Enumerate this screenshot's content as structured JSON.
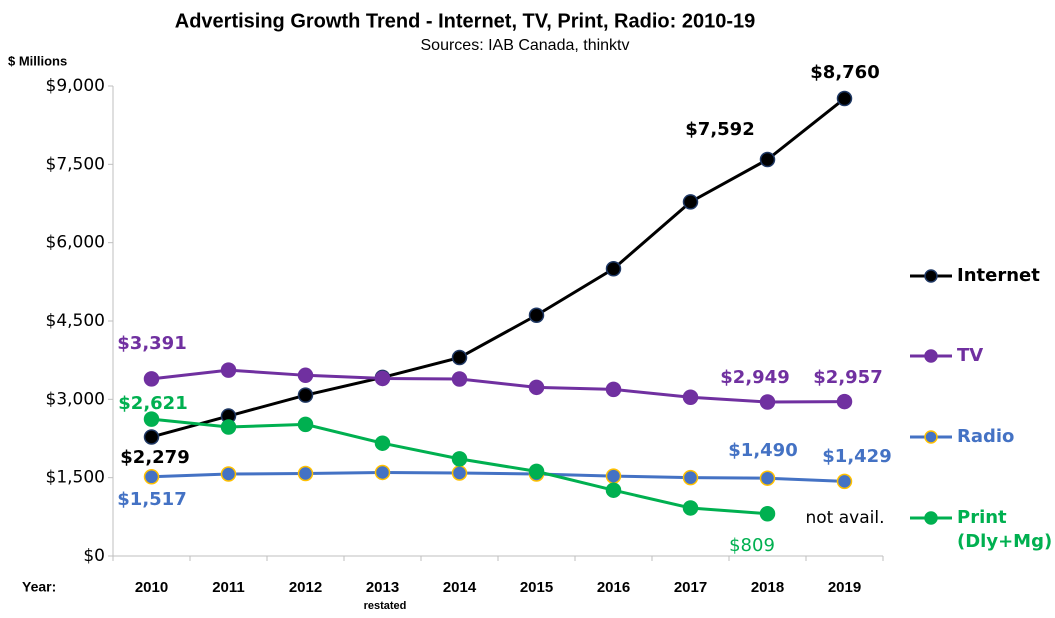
{
  "chart_data": {
    "type": "line",
    "title": "Advertising Growth Trend - Internet, TV, Print, Radio: 2010-19",
    "subtitle": "Sources: IAB Canada, thinktv",
    "y_label": "$ Millions",
    "x_label": "Year:",
    "annotations": [
      "restated",
      "not avail."
    ],
    "categories": [
      "2010",
      "2011",
      "2012",
      "2013",
      "2014",
      "2015",
      "2016",
      "2017",
      "2018",
      "2019"
    ],
    "series": [
      {
        "name": "Internet",
        "color": "#000000",
        "marker_edge": "#1f3864",
        "values": [
          2279,
          2680,
          3080,
          3420,
          3800,
          4610,
          5500,
          6780,
          7592,
          8760
        ],
        "value_labels": [
          "$2,279",
          null,
          null,
          null,
          null,
          null,
          null,
          null,
          "$7,592",
          "$8,760"
        ]
      },
      {
        "name": "TV",
        "color": "#7030a0",
        "marker_edge": "#7030a0",
        "values": [
          3391,
          3560,
          3460,
          3400,
          3390,
          3230,
          3190,
          3040,
          2949,
          2957
        ],
        "value_labels": [
          "$3,391",
          null,
          null,
          null,
          null,
          null,
          null,
          null,
          "$2,949",
          "$2,957"
        ]
      },
      {
        "name": "Radio",
        "color": "#4472c4",
        "marker_edge": "#ffc000",
        "values": [
          1517,
          1570,
          1580,
          1600,
          1590,
          1570,
          1530,
          1500,
          1490,
          1429
        ],
        "value_labels": [
          "$1,517",
          null,
          null,
          null,
          null,
          null,
          null,
          null,
          "$1,490",
          "$1,429"
        ]
      },
      {
        "name": "Print (Dly+Mg)",
        "color": "#00b050",
        "marker_edge": "#00b050",
        "values": [
          2621,
          2470,
          2520,
          2160,
          1860,
          1620,
          1260,
          920,
          809,
          null
        ],
        "value_labels": [
          "$2,621",
          null,
          null,
          null,
          null,
          null,
          null,
          null,
          "$809",
          null
        ]
      }
    ],
    "ylim": [
      0,
      9000
    ],
    "yticks": [
      {
        "value": 0,
        "label": "$0"
      },
      {
        "value": 1500,
        "label": "$1,500"
      },
      {
        "value": 3000,
        "label": "$3,000"
      },
      {
        "value": 4500,
        "label": "$4,500"
      },
      {
        "value": 6000,
        "label": "$6,000"
      },
      {
        "value": 7500,
        "label": "$7,500"
      },
      {
        "value": 9000,
        "label": "$9,000"
      }
    ],
    "grid": false,
    "legend": "right"
  }
}
